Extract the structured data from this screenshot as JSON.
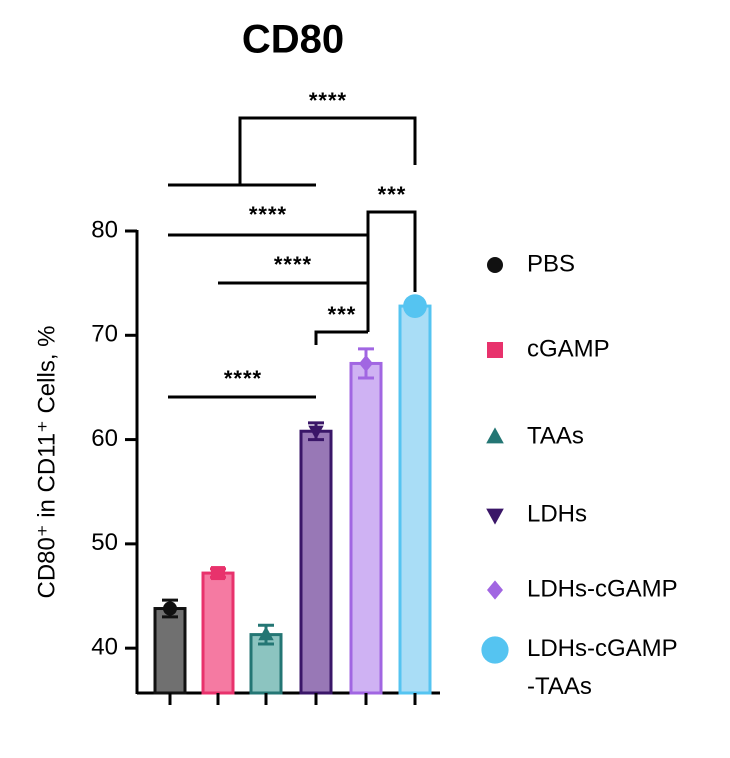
{
  "chart_data": {
    "type": "bar",
    "title": "CD80",
    "y_label": "CD80⁺ in CD11⁺ Cells, %",
    "categories": [
      "PBS",
      "cGAMP",
      "TAAs",
      "LDHs",
      "LDHs-cGAMP",
      "LDHs-cGAMP-TAAs"
    ],
    "values": [
      43.8,
      47.2,
      41.3,
      60.8,
      67.3,
      72.8
    ],
    "errors": [
      0.8,
      0.4,
      0.9,
      0.8,
      1.4,
      0.3
    ],
    "fill_colors": [
      "#707070",
      "#f57aa2",
      "#8cc4c0",
      "#9878b6",
      "#cfb2f3",
      "#a9ddf6"
    ],
    "marker_colors": [
      "#111111",
      "#e8326c",
      "#247674",
      "#3a1668",
      "#a166e2",
      "#55c4f1"
    ],
    "markers": [
      "circle",
      "square",
      "triangle-up",
      "triangle-down",
      "diamond",
      "big-circle"
    ],
    "ylim": [
      35.7,
      80
    ],
    "yticks": [
      40,
      50,
      60,
      70,
      80
    ],
    "annotations": [
      "****",
      "****",
      "***",
      "****",
      "***",
      "****"
    ]
  }
}
